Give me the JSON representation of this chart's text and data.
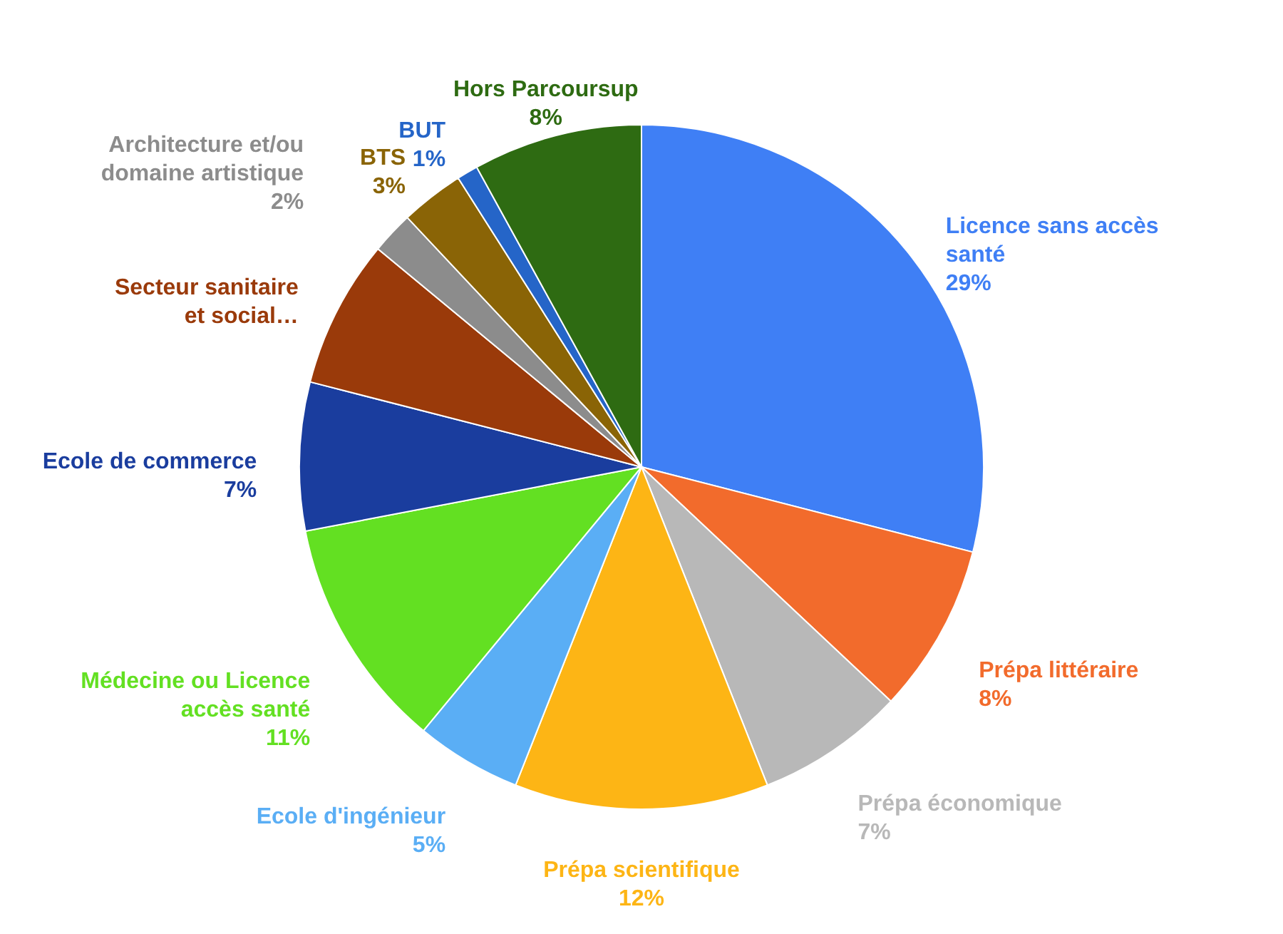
{
  "chart_data": {
    "type": "pie",
    "categories": [
      "Licence sans accès santé",
      "Prépa littéraire",
      "Prépa économique",
      "Prépa scientifique",
      "Ecole d'ingénieur",
      "Médecine ou Licence accès santé",
      "Ecole de commerce",
      "Secteur sanitaire et social…",
      "Architecture et/ou domaine artistique",
      "BTS",
      "BUT",
      "Hors Parcoursup"
    ],
    "values": [
      29,
      8,
      7,
      12,
      5,
      11,
      7,
      7,
      2,
      3,
      1,
      8
    ],
    "value_labels": [
      "29%",
      "8%",
      "7%",
      "12%",
      "5%",
      "11%",
      "7%",
      null,
      "2%",
      "3%",
      "1%",
      "8%"
    ],
    "colors": [
      "#3f7ff5",
      "#f26b2c",
      "#b8b8b8",
      "#fdb515",
      "#5aaef5",
      "#63e022",
      "#1a3d9e",
      "#9a3a0a",
      "#8c8c8c",
      "#8a6406",
      "#2565c8",
      "#2e6b12"
    ]
  }
}
